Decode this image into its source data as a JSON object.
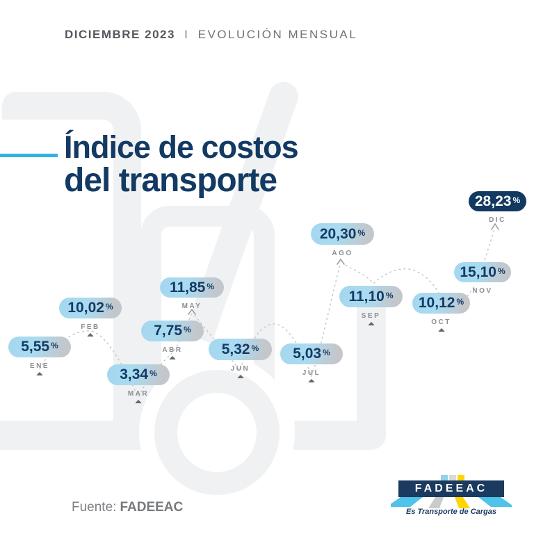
{
  "header": {
    "period": "DICIEMBRE 2023",
    "separator": "I",
    "subtitle": "EVOLUCIÓN MENSUAL"
  },
  "title": {
    "line1": "Índice de costos",
    "line2": "del transporte"
  },
  "source": {
    "prefix": "Fuente:",
    "name": "FADEEAC"
  },
  "logo": {
    "name": "FADEEAC",
    "tagline": "Es Transporte de Cargas"
  },
  "colors": {
    "navy": "#123a63",
    "pill_blue": "#a5d8ef",
    "pill_gray": "#c3c7cb",
    "accent_blue": "#2fb3e2",
    "label_gray": "#8a8e93",
    "dash_gray": "#c4c6c8",
    "watermark_gray": "#f0f1f2",
    "logo_yellow": "#ffd500"
  },
  "chart_data": {
    "type": "line",
    "title": "Índice de costos del transporte",
    "subtitle": "DICIEMBRE 2023 | EVOLUCIÓN MENSUAL",
    "unit": "%",
    "decimal_separator": ",",
    "categories": [
      "ENE",
      "FEB",
      "MAR",
      "ABR",
      "MAY",
      "JUN",
      "JUL",
      "AGO",
      "SEP",
      "OCT",
      "NOV",
      "DIC"
    ],
    "values": [
      5.55,
      10.02,
      3.34,
      7.75,
      11.85,
      5.32,
      5.03,
      20.3,
      11.1,
      10.12,
      15.1,
      28.23
    ],
    "display_values": [
      "5,55",
      "10,02",
      "3,34",
      "7,75",
      "11,85",
      "5,32",
      "5,03",
      "20,30",
      "11,10",
      "10,12",
      "15,10",
      "28,23"
    ],
    "highlighted_category": "DIC",
    "legend": false,
    "grid": false,
    "source": "FADEEAC"
  }
}
